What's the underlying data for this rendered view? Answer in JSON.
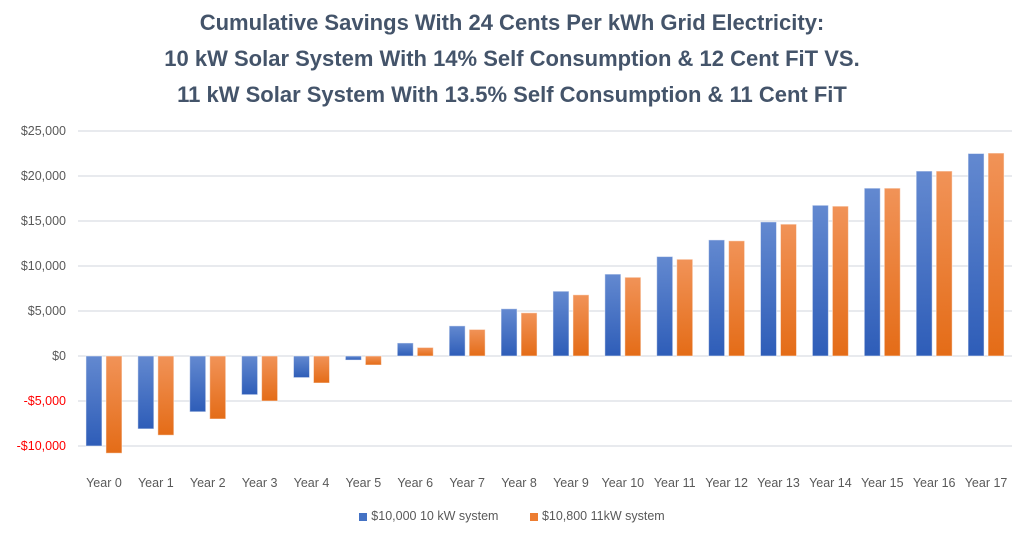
{
  "chart_data": {
    "type": "bar",
    "title": [
      "Cumulative Savings With 24 Cents Per kWh Grid Electricity:",
      "10 kW Solar System With 14% Self Consumption & 12 Cent FiT VS.",
      "11 kW Solar System With 13.5% Self Consumption & 11 Cent FiT"
    ],
    "categories": [
      "Year 0",
      "Year 1",
      "Year 2",
      "Year 3",
      "Year 4",
      "Year 5",
      "Year 6",
      "Year 7",
      "Year 8",
      "Year 9",
      "Year 10",
      "Year 11",
      "Year 12",
      "Year 13",
      "Year 14",
      "Year 15",
      "Year 16",
      "Year 17"
    ],
    "series": [
      {
        "name": "$10,000 10 kW system",
        "color": "#4472c4",
        "values": [
          -10000,
          -8100,
          -6200,
          -4300,
          -2400,
          -450,
          1450,
          3350,
          5250,
          7200,
          9100,
          11050,
          12900,
          14900,
          16750,
          18650,
          20550,
          22500
        ]
      },
      {
        "name": "$10,800 11kW system",
        "color": "#ed7d31",
        "values": [
          -10800,
          -8800,
          -7000,
          -5000,
          -3000,
          -1000,
          950,
          2950,
          4800,
          6800,
          8750,
          10750,
          12800,
          14650,
          16650,
          18650,
          20550,
          22550
        ]
      }
    ],
    "ylim": [
      -10000,
      25000
    ],
    "yticks": [
      25000,
      20000,
      15000,
      10000,
      5000,
      0,
      -5000,
      -10000
    ],
    "ytick_labels": [
      "$25,000",
      "$20,000",
      "$15,000",
      "$10,000",
      "$5,000",
      "$0",
      "-$5,000",
      "-$10,000"
    ],
    "negative_label_color": "#ff0000",
    "grid": true,
    "legend": "bottom",
    "xlabel": "",
    "ylabel": ""
  }
}
